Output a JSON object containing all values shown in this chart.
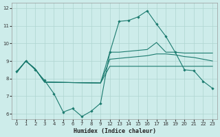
{
  "xlabel": "Humidex (Indice chaleur)",
  "bg_color": "#cdecea",
  "grid_color": "#aed4d0",
  "line_color": "#1a7a6e",
  "xlim": [
    -0.5,
    23.5
  ],
  "ylim": [
    5.7,
    12.3
  ],
  "yticks": [
    6,
    7,
    8,
    9,
    10,
    11,
    12
  ],
  "xticks": [
    0,
    1,
    2,
    3,
    4,
    5,
    6,
    7,
    8,
    9,
    12,
    13,
    14,
    15,
    16,
    17,
    18,
    19,
    20,
    21,
    22,
    23
  ],
  "series1_x": [
    0,
    1,
    2,
    3,
    4,
    5,
    6,
    7,
    8,
    9,
    12,
    13,
    14,
    15,
    16,
    17,
    18,
    19,
    20,
    21,
    22,
    23
  ],
  "series1_y": [
    8.4,
    9.0,
    8.5,
    7.9,
    7.15,
    6.1,
    6.3,
    5.85,
    6.15,
    6.6,
    9.5,
    11.25,
    11.3,
    11.5,
    11.85,
    11.1,
    10.4,
    9.5,
    8.5,
    8.45,
    7.85,
    7.45
  ],
  "series2_x": [
    0,
    1,
    2,
    3,
    9,
    12,
    13,
    14,
    15,
    16,
    17,
    18,
    19,
    20,
    21,
    22,
    23
  ],
  "series2_y": [
    8.35,
    9.0,
    8.55,
    7.8,
    7.75,
    9.5,
    9.5,
    9.55,
    9.6,
    9.65,
    10.05,
    9.5,
    9.5,
    9.45,
    9.45,
    9.45,
    9.45
  ],
  "series3_x": [
    0,
    1,
    2,
    3,
    9,
    12,
    13,
    14,
    15,
    16,
    17,
    18,
    19,
    20,
    21,
    22,
    23
  ],
  "series3_y": [
    8.35,
    9.0,
    8.55,
    7.8,
    7.75,
    9.1,
    9.15,
    9.2,
    9.25,
    9.3,
    9.4,
    9.4,
    9.35,
    9.25,
    9.2,
    9.1,
    9.0
  ],
  "series4_x": [
    0,
    1,
    2,
    3,
    9,
    12,
    13,
    14,
    15,
    16,
    17,
    18,
    19,
    20,
    21,
    22,
    23
  ],
  "series4_y": [
    8.35,
    9.0,
    8.55,
    7.8,
    7.75,
    8.7,
    8.7,
    8.7,
    8.7,
    8.7,
    8.7,
    8.7,
    8.7,
    8.7,
    8.7,
    8.7,
    8.7
  ]
}
